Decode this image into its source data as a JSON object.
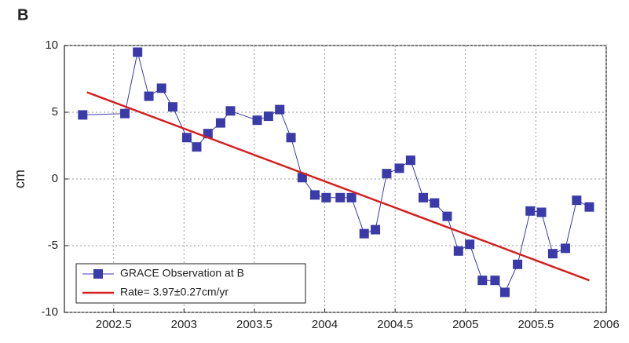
{
  "chart_data": {
    "type": "line",
    "panel_label": "B",
    "ylabel": "cm",
    "xlim": [
      2002.15,
      2006
    ],
    "xticks": [
      2002.5,
      2003,
      2003.5,
      2004,
      2004.5,
      2005,
      2005.5,
      2006
    ],
    "ylim": [
      -10,
      10
    ],
    "yticks": [
      -10,
      -5,
      0,
      5,
      10
    ],
    "grid": true,
    "legend_position": "lower-left",
    "series": [
      {
        "name": "GRACE Observation at B",
        "color": "#3a3aa8",
        "marker": "square",
        "x": [
          2002.28,
          2002.58,
          2002.67,
          2002.75,
          2002.84,
          2002.92,
          2003.02,
          2003.09,
          2003.17,
          2003.26,
          2003.33,
          2003.52,
          2003.6,
          2003.68,
          2003.76,
          2003.84,
          2003.93,
          2004.01,
          2004.11,
          2004.19,
          2004.28,
          2004.36,
          2004.44,
          2004.53,
          2004.61,
          2004.7,
          2004.78,
          2004.87,
          2004.95,
          2005.03,
          2005.12,
          2005.21,
          2005.28,
          2005.37,
          2005.46,
          2005.54,
          2005.62,
          2005.71,
          2005.79,
          2005.88
        ],
        "values": [
          4.8,
          4.9,
          9.5,
          6.2,
          6.8,
          5.4,
          3.1,
          2.4,
          3.4,
          4.2,
          5.1,
          4.4,
          4.7,
          5.2,
          3.1,
          0.1,
          -1.2,
          -1.4,
          -1.4,
          -1.4,
          -4.1,
          -3.8,
          0.4,
          0.8,
          1.4,
          -1.4,
          -1.8,
          -2.8,
          -5.4,
          -4.9,
          -7.6,
          -7.6,
          -8.5,
          -6.4,
          -2.4,
          -2.5,
          -5.6,
          -5.2,
          -1.6,
          -2.1
        ]
      },
      {
        "name": "Rate= 3.97±0.27cm/yr",
        "color": "#d42020",
        "marker": "none",
        "x": [
          2002.31,
          2005.88
        ],
        "values": [
          6.5,
          -7.6
        ]
      }
    ]
  }
}
